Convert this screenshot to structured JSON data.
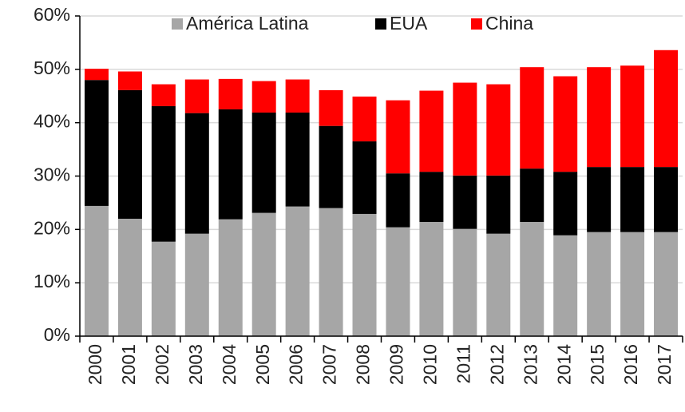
{
  "chart_data": {
    "type": "stacked_bar",
    "categories": [
      "2000",
      "2001",
      "2002",
      "2003",
      "2004",
      "2005",
      "2006",
      "2007",
      "2008",
      "2009",
      "2010",
      "2011",
      "2012",
      "2013",
      "2014",
      "2015",
      "2016",
      "2017"
    ],
    "series": [
      {
        "name": "América Latina",
        "color": "#a6a6a6",
        "values": [
          24.4,
          22.0,
          17.7,
          19.2,
          21.9,
          23.1,
          24.3,
          24.0,
          22.9,
          20.4,
          21.4,
          20.1,
          19.2,
          21.4,
          18.9,
          19.5,
          19.5,
          19.5
        ]
      },
      {
        "name": "EUA",
        "color": "#000000",
        "values": [
          23.6,
          24.1,
          25.4,
          22.6,
          20.6,
          18.8,
          17.6,
          15.4,
          13.6,
          10.1,
          9.4,
          10.0,
          10.9,
          10.0,
          11.9,
          12.2,
          12.2,
          12.2
        ]
      },
      {
        "name": "China",
        "color": "#ff0000",
        "values": [
          2.1,
          3.5,
          4.1,
          6.3,
          5.7,
          5.9,
          6.2,
          6.7,
          8.4,
          13.7,
          15.2,
          17.4,
          17.1,
          19.0,
          17.9,
          18.7,
          19.0,
          21.9
        ]
      }
    ],
    "ylim": [
      0,
      60
    ],
    "yticks": [
      {
        "value": 0,
        "label": "0%"
      },
      {
        "value": 10,
        "label": "10%"
      },
      {
        "value": 20,
        "label": "20%"
      },
      {
        "value": 30,
        "label": "30%"
      },
      {
        "value": 40,
        "label": "40%"
      },
      {
        "value": 50,
        "label": "50%"
      },
      {
        "value": 60,
        "label": "60%"
      }
    ],
    "grid": true,
    "legend": "top"
  }
}
